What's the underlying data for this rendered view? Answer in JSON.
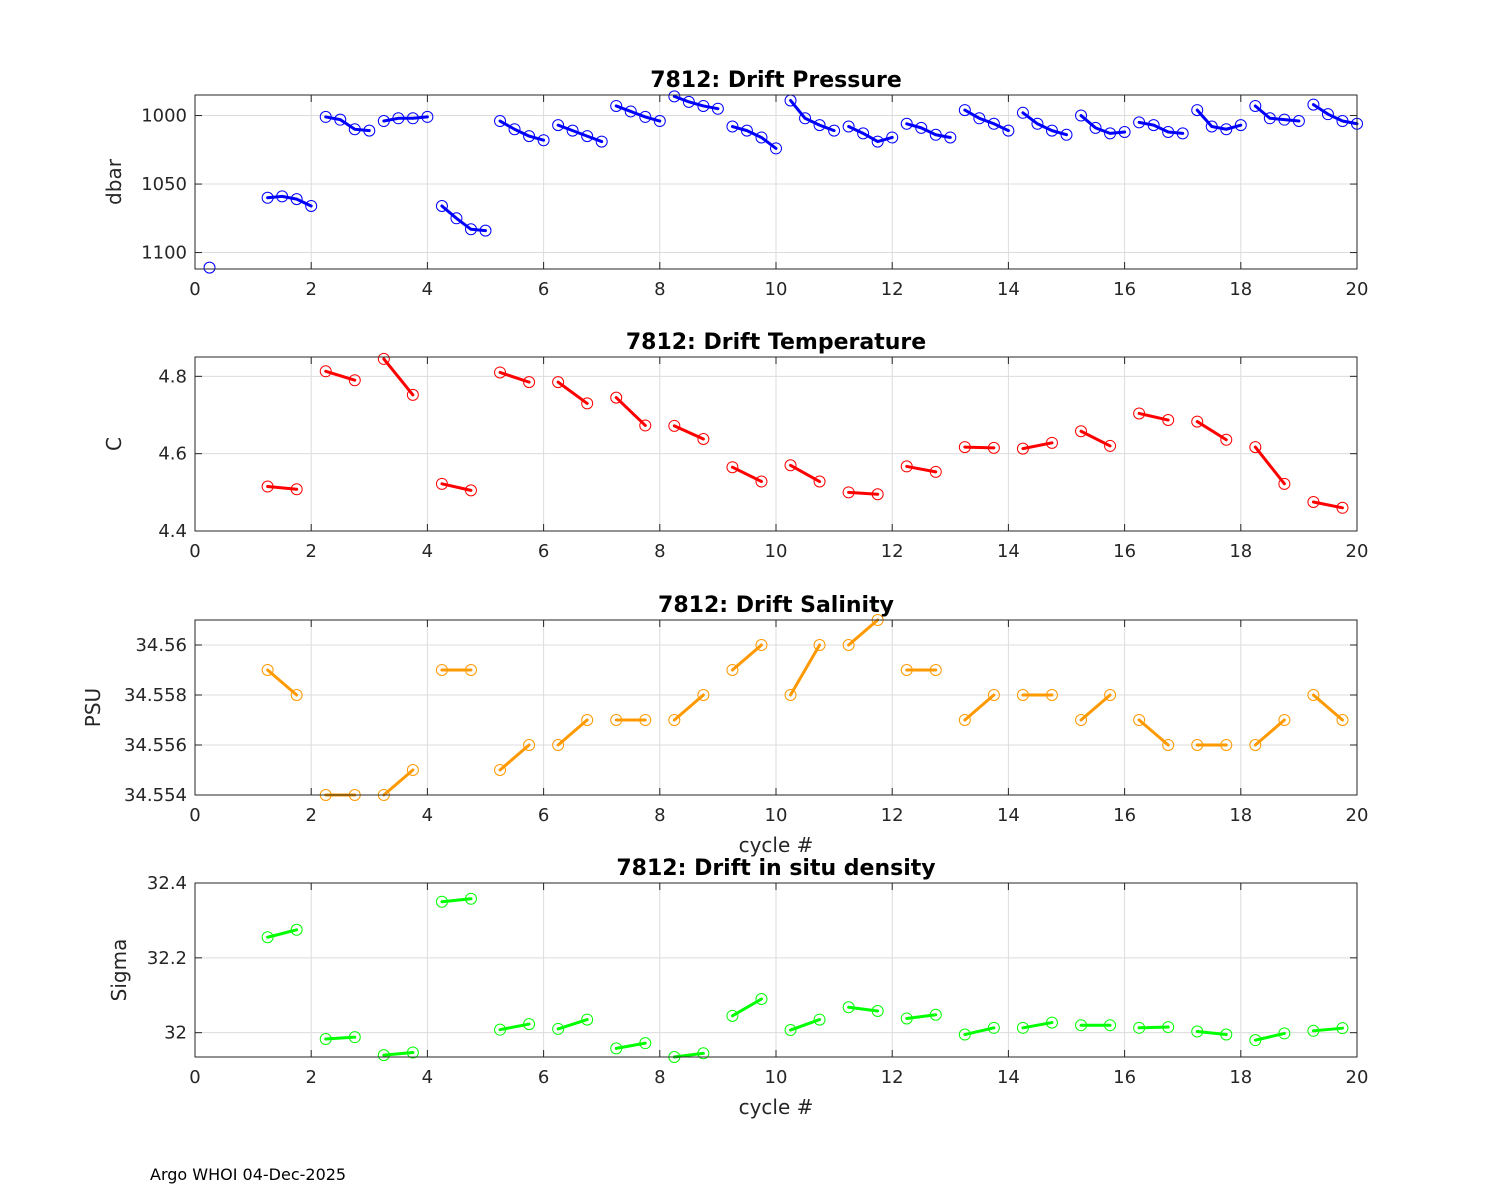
{
  "footer": "Argo WHOI 04-Dec-2025",
  "chart_data": [
    {
      "type": "line",
      "title": "7812: Drift Pressure",
      "xlabel": "",
      "ylabel": "dbar",
      "xlim": [
        0,
        20
      ],
      "ylim": [
        985,
        1112
      ],
      "yreverse": true,
      "xticks": [
        0,
        2,
        4,
        6,
        8,
        10,
        12,
        14,
        16,
        18,
        20
      ],
      "yticks": [
        1000,
        1050,
        1100
      ],
      "color": "#0000ff",
      "segments": [
        {
          "x": [
            0.25
          ],
          "y": [
            1111
          ]
        },
        {
          "x": [
            1.25,
            1.5,
            1.75,
            2.0
          ],
          "y": [
            1060,
            1059,
            1061,
            1066
          ]
        },
        {
          "x": [
            2.25,
            2.5,
            2.75,
            3.0
          ],
          "y": [
            1001,
            1003,
            1010,
            1011
          ]
        },
        {
          "x": [
            3.25,
            3.5,
            3.75,
            4.0
          ],
          "y": [
            1004,
            1002,
            1002,
            1001
          ]
        },
        {
          "x": [
            4.25,
            4.5,
            4.75,
            5.0
          ],
          "y": [
            1066,
            1075,
            1083,
            1084
          ]
        },
        {
          "x": [
            5.25,
            5.5,
            5.75,
            6.0
          ],
          "y": [
            1004,
            1010,
            1015,
            1018
          ]
        },
        {
          "x": [
            6.25,
            6.5,
            6.75,
            7.0
          ],
          "y": [
            1007,
            1011,
            1015,
            1019
          ]
        },
        {
          "x": [
            7.25,
            7.5,
            7.75,
            8.0
          ],
          "y": [
            993,
            997,
            1001,
            1004
          ]
        },
        {
          "x": [
            8.25,
            8.5,
            8.75,
            9.0
          ],
          "y": [
            986,
            990,
            993,
            995
          ]
        },
        {
          "x": [
            9.25,
            9.5,
            9.75,
            10.0
          ],
          "y": [
            1008,
            1011,
            1016,
            1024
          ]
        },
        {
          "x": [
            10.25,
            10.5,
            10.75,
            11.0
          ],
          "y": [
            989,
            1002,
            1007,
            1011
          ]
        },
        {
          "x": [
            11.25,
            11.5,
            11.75,
            12.0
          ],
          "y": [
            1008,
            1013,
            1019,
            1016
          ]
        },
        {
          "x": [
            12.25,
            12.5,
            12.75,
            13.0
          ],
          "y": [
            1006,
            1009,
            1014,
            1016
          ]
        },
        {
          "x": [
            13.25,
            13.5,
            13.75,
            14.0
          ],
          "y": [
            996,
            1002,
            1006,
            1011
          ]
        },
        {
          "x": [
            14.25,
            14.5,
            14.75,
            15.0
          ],
          "y": [
            998,
            1006,
            1011,
            1014
          ]
        },
        {
          "x": [
            15.25,
            15.5,
            15.75,
            16.0
          ],
          "y": [
            1000,
            1009,
            1013,
            1012
          ]
        },
        {
          "x": [
            16.25,
            16.5,
            16.75,
            17.0
          ],
          "y": [
            1005,
            1007,
            1012,
            1013
          ]
        },
        {
          "x": [
            17.25,
            17.5,
            17.75,
            18.0
          ],
          "y": [
            996,
            1008,
            1010,
            1007
          ]
        },
        {
          "x": [
            18.25,
            18.5,
            18.75,
            19.0
          ],
          "y": [
            993,
            1002,
            1003,
            1004
          ]
        },
        {
          "x": [
            19.25,
            19.5,
            19.75,
            20.0
          ],
          "y": [
            992,
            999,
            1004,
            1006
          ]
        }
      ]
    },
    {
      "type": "line",
      "title": "7812: Drift Temperature",
      "xlabel": "",
      "ylabel": "C",
      "xlim": [
        0,
        20
      ],
      "ylim": [
        4.4,
        4.85
      ],
      "yreverse": false,
      "xticks": [
        0,
        2,
        4,
        6,
        8,
        10,
        12,
        14,
        16,
        18,
        20
      ],
      "yticks": [
        4.4,
        4.6,
        4.8
      ],
      "color": "#ff0000",
      "segments": [
        {
          "x": [
            1.25,
            1.75
          ],
          "y": [
            4.515,
            4.508
          ]
        },
        {
          "x": [
            2.25,
            2.75
          ],
          "y": [
            4.813,
            4.79
          ]
        },
        {
          "x": [
            3.25,
            3.75
          ],
          "y": [
            4.845,
            4.752
          ]
        },
        {
          "x": [
            4.25,
            4.75
          ],
          "y": [
            4.522,
            4.505
          ]
        },
        {
          "x": [
            5.25,
            5.75
          ],
          "y": [
            4.81,
            4.785
          ]
        },
        {
          "x": [
            6.25,
            6.75
          ],
          "y": [
            4.785,
            4.73
          ]
        },
        {
          "x": [
            7.25,
            7.75
          ],
          "y": [
            4.745,
            4.673
          ]
        },
        {
          "x": [
            8.25,
            8.75
          ],
          "y": [
            4.672,
            4.638
          ]
        },
        {
          "x": [
            9.25,
            9.75
          ],
          "y": [
            4.565,
            4.528
          ]
        },
        {
          "x": [
            10.25,
            10.75
          ],
          "y": [
            4.57,
            4.528
          ]
        },
        {
          "x": [
            11.25,
            11.75
          ],
          "y": [
            4.5,
            4.495
          ]
        },
        {
          "x": [
            12.25,
            12.75
          ],
          "y": [
            4.567,
            4.553
          ]
        },
        {
          "x": [
            13.25,
            13.75
          ],
          "y": [
            4.617,
            4.615
          ]
        },
        {
          "x": [
            14.25,
            14.75
          ],
          "y": [
            4.613,
            4.628
          ]
        },
        {
          "x": [
            15.25,
            15.75
          ],
          "y": [
            4.658,
            4.62
          ]
        },
        {
          "x": [
            16.25,
            16.75
          ],
          "y": [
            4.704,
            4.687
          ]
        },
        {
          "x": [
            17.25,
            17.75
          ],
          "y": [
            4.683,
            4.636
          ]
        },
        {
          "x": [
            18.25,
            18.75
          ],
          "y": [
            4.617,
            4.522
          ]
        },
        {
          "x": [
            19.25,
            19.75
          ],
          "y": [
            4.475,
            4.46
          ]
        }
      ]
    },
    {
      "type": "line",
      "title": "7812: Drift Salinity",
      "xlabel": "cycle #",
      "ylabel": "PSU",
      "xlim": [
        0,
        20
      ],
      "ylim": [
        34.554,
        34.561
      ],
      "yreverse": false,
      "xticks": [
        0,
        2,
        4,
        6,
        8,
        10,
        12,
        14,
        16,
        18,
        20
      ],
      "yticks": [
        34.554,
        34.556,
        34.558,
        34.56
      ],
      "color": "#ff9900",
      "segments": [
        {
          "x": [
            1.25,
            1.75
          ],
          "y": [
            34.559,
            34.558
          ]
        },
        {
          "x": [
            2.25,
            2.75
          ],
          "y": [
            34.554,
            34.554
          ]
        },
        {
          "x": [
            3.25,
            3.75
          ],
          "y": [
            34.554,
            34.555
          ]
        },
        {
          "x": [
            4.25,
            4.75
          ],
          "y": [
            34.559,
            34.559
          ]
        },
        {
          "x": [
            5.25,
            5.75
          ],
          "y": [
            34.555,
            34.556
          ]
        },
        {
          "x": [
            6.25,
            6.75
          ],
          "y": [
            34.556,
            34.557
          ]
        },
        {
          "x": [
            7.25,
            7.75
          ],
          "y": [
            34.557,
            34.557
          ]
        },
        {
          "x": [
            8.25,
            8.75
          ],
          "y": [
            34.557,
            34.558
          ]
        },
        {
          "x": [
            9.25,
            9.75
          ],
          "y": [
            34.559,
            34.56
          ]
        },
        {
          "x": [
            10.25,
            10.75
          ],
          "y": [
            34.558,
            34.56
          ]
        },
        {
          "x": [
            11.25,
            11.75
          ],
          "y": [
            34.56,
            34.561
          ]
        },
        {
          "x": [
            12.25,
            12.75
          ],
          "y": [
            34.559,
            34.559
          ]
        },
        {
          "x": [
            13.25,
            13.75
          ],
          "y": [
            34.557,
            34.558
          ]
        },
        {
          "x": [
            14.25,
            14.75
          ],
          "y": [
            34.558,
            34.558
          ]
        },
        {
          "x": [
            15.25,
            15.75
          ],
          "y": [
            34.557,
            34.558
          ]
        },
        {
          "x": [
            16.25,
            16.75
          ],
          "y": [
            34.557,
            34.556
          ]
        },
        {
          "x": [
            17.25,
            17.75
          ],
          "y": [
            34.556,
            34.556
          ]
        },
        {
          "x": [
            18.25,
            18.75
          ],
          "y": [
            34.556,
            34.557
          ]
        },
        {
          "x": [
            19.25,
            19.75
          ],
          "y": [
            34.558,
            34.557
          ]
        }
      ]
    },
    {
      "type": "line",
      "title": "7812: Drift in situ density",
      "xlabel": "cycle #",
      "ylabel": "Sigma",
      "xlim": [
        0,
        20
      ],
      "ylim": [
        31.935,
        32.4
      ],
      "yreverse": false,
      "xticks": [
        0,
        2,
        4,
        6,
        8,
        10,
        12,
        14,
        16,
        18,
        20
      ],
      "yticks": [
        32,
        32.2,
        32.4
      ],
      "color": "#00ff00",
      "segments": [
        {
          "x": [
            1.25,
            1.75
          ],
          "y": [
            32.255,
            32.275
          ]
        },
        {
          "x": [
            2.25,
            2.75
          ],
          "y": [
            31.983,
            31.988
          ]
        },
        {
          "x": [
            3.25,
            3.75
          ],
          "y": [
            31.94,
            31.947
          ]
        },
        {
          "x": [
            4.25,
            4.75
          ],
          "y": [
            32.35,
            32.358
          ]
        },
        {
          "x": [
            5.25,
            5.75
          ],
          "y": [
            32.008,
            32.023
          ]
        },
        {
          "x": [
            6.25,
            6.75
          ],
          "y": [
            32.01,
            32.035
          ]
        },
        {
          "x": [
            7.25,
            7.75
          ],
          "y": [
            31.958,
            31.972
          ]
        },
        {
          "x": [
            8.25,
            8.75
          ],
          "y": [
            31.935,
            31.945
          ]
        },
        {
          "x": [
            9.25,
            9.75
          ],
          "y": [
            32.045,
            32.09
          ]
        },
        {
          "x": [
            10.25,
            10.75
          ],
          "y": [
            32.007,
            32.035
          ]
        },
        {
          "x": [
            11.25,
            11.75
          ],
          "y": [
            32.068,
            32.058
          ]
        },
        {
          "x": [
            12.25,
            12.75
          ],
          "y": [
            32.038,
            32.048
          ]
        },
        {
          "x": [
            13.25,
            13.75
          ],
          "y": [
            31.995,
            32.013
          ]
        },
        {
          "x": [
            14.25,
            14.75
          ],
          "y": [
            32.013,
            32.027
          ]
        },
        {
          "x": [
            15.25,
            15.75
          ],
          "y": [
            32.02,
            32.02
          ]
        },
        {
          "x": [
            16.25,
            16.75
          ],
          "y": [
            32.013,
            32.015
          ]
        },
        {
          "x": [
            17.25,
            17.75
          ],
          "y": [
            32.003,
            31.995
          ]
        },
        {
          "x": [
            18.25,
            18.75
          ],
          "y": [
            31.98,
            31.998
          ]
        },
        {
          "x": [
            19.25,
            19.75
          ],
          "y": [
            32.005,
            32.012
          ]
        }
      ]
    }
  ]
}
